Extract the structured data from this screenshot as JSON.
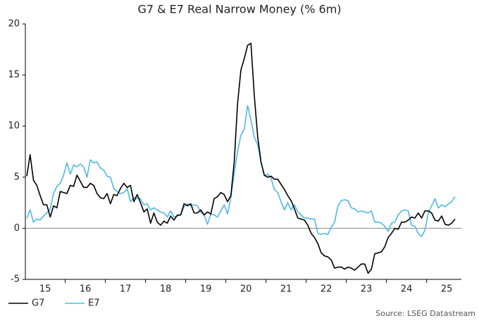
{
  "chart_data": {
    "type": "line",
    "title": "G7 & E7 Real Narrow Money (% 6m)",
    "source": "Source: LSEG Datastream",
    "categories": [
      null,
      null,
      null,
      null,
      null,
      null,
      "15",
      null,
      null,
      null,
      null,
      null,
      null,
      null,
      null,
      null,
      null,
      null,
      "16",
      null,
      null,
      null,
      null,
      null,
      null,
      null,
      null,
      null,
      null,
      null,
      "17",
      null,
      null,
      null,
      null,
      null,
      null,
      null,
      null,
      null,
      null,
      null,
      "18",
      null,
      null,
      null,
      null,
      null,
      null,
      null,
      null,
      null,
      null,
      null,
      "19",
      null,
      null,
      null,
      null,
      null,
      null,
      null,
      null,
      null,
      null,
      null,
      "20",
      null,
      null,
      null,
      null,
      null,
      null,
      null,
      null,
      null,
      null,
      null,
      "21",
      null,
      null,
      null,
      null,
      null,
      null,
      null,
      null,
      null,
      null,
      null,
      "22",
      null,
      null,
      null,
      null,
      null,
      null,
      null,
      null,
      null,
      null,
      null,
      "23",
      null,
      null,
      null,
      null,
      null,
      null,
      null,
      null,
      null,
      null,
      null,
      "24",
      null,
      null,
      null,
      null,
      null,
      null,
      null,
      null,
      null,
      null,
      null,
      "25",
      null,
      null
    ],
    "series": [
      {
        "name": "G7",
        "color": "#000000",
        "values": [
          5.1,
          7.2,
          4.7,
          4.2,
          3.2,
          2.3,
          2.3,
          1.1,
          2.2,
          2.0,
          3.6,
          3.5,
          3.4,
          4.2,
          4.1,
          5.2,
          4.6,
          4.0,
          4.0,
          4.4,
          4.2,
          3.4,
          3.0,
          2.9,
          3.4,
          2.4,
          3.3,
          3.2,
          3.9,
          4.4,
          4.0,
          4.2,
          2.6,
          3.3,
          2.5,
          1.6,
          1.9,
          0.5,
          1.5,
          0.6,
          0.3,
          0.7,
          0.5,
          1.2,
          0.8,
          1.3,
          1.3,
          2.4,
          2.2,
          2.4,
          1.5,
          1.5,
          1.8,
          1.3,
          1.6,
          1.4,
          2.9,
          3.1,
          3.5,
          3.3,
          2.6,
          3.2,
          6.5,
          12.2,
          15.5,
          16.6,
          17.9,
          18.1,
          13.0,
          9.0,
          6.5,
          5.2,
          5.0,
          5.1,
          4.8,
          4.8,
          4.3,
          3.8,
          3.2,
          2.7,
          1.9,
          1.0,
          0.9,
          0.8,
          0.3,
          -0.5,
          -0.9,
          -1.5,
          -2.4,
          -2.7,
          -2.8,
          -3.1,
          -3.9,
          -3.8,
          -3.8,
          -4.0,
          -3.8,
          -3.9,
          -4.1,
          -3.8,
          -3.5,
          -3.5,
          -4.4,
          -4.0,
          -2.5,
          -2.4,
          -2.3,
          -1.8,
          -0.9,
          -0.5,
          0.0,
          -0.1,
          0.6,
          0.6,
          0.8,
          1.1,
          1.0,
          1.5,
          1.0,
          1.7,
          1.7,
          1.5,
          0.8,
          0.7,
          1.2,
          0.4,
          0.3,
          0.5,
          0.9
        ]
      },
      {
        "name": "E7",
        "color": "#4fb8e6",
        "values": [
          1.0,
          1.8,
          0.6,
          0.9,
          0.8,
          1.2,
          1.5,
          1.9,
          3.4,
          4.1,
          4.4,
          5.2,
          6.4,
          5.3,
          6.2,
          6.0,
          6.3,
          6.0,
          5.0,
          6.7,
          6.4,
          6.5,
          5.9,
          5.7,
          5.1,
          5.0,
          3.9,
          3.6,
          3.4,
          3.5,
          3.9,
          2.6,
          3.0,
          2.9,
          2.9,
          2.3,
          2.4,
          1.8,
          2.0,
          1.8,
          1.6,
          1.5,
          1.1,
          1.7,
          1.1,
          1.2,
          1.3,
          2.1,
          2.4,
          2.2,
          2.3,
          2.2,
          1.6,
          1.3,
          0.4,
          1.4,
          1.3,
          1.1,
          1.7,
          2.3,
          1.4,
          3.0,
          5.4,
          7.5,
          9.1,
          9.7,
          12.0,
          10.6,
          8.9,
          8.2,
          6.5,
          5.1,
          5.3,
          4.9,
          3.8,
          3.5,
          2.6,
          1.8,
          2.5,
          1.8,
          2.3,
          1.6,
          1.3,
          1.0,
          1.0,
          0.9,
          0.9,
          -0.5,
          -0.6,
          -0.5,
          -0.6,
          0.1,
          0.6,
          2.2,
          2.7,
          2.8,
          2.7,
          2.0,
          1.9,
          1.6,
          1.7,
          1.6,
          1.5,
          1.7,
          0.6,
          0.6,
          0.5,
          0.2,
          -0.3,
          0.5,
          0.6,
          1.3,
          1.7,
          1.8,
          1.7,
          0.3,
          0.2,
          -0.5,
          -0.8,
          -0.2,
          1.5,
          2.2,
          2.9,
          2.0,
          2.3,
          2.1,
          2.4,
          2.6,
          3.1
        ]
      }
    ],
    "ylim": [
      -5,
      20
    ],
    "yticks": [
      -5,
      0,
      5,
      10,
      15,
      20
    ],
    "zero_line": true,
    "grid": false,
    "legend": "bottom-left"
  }
}
